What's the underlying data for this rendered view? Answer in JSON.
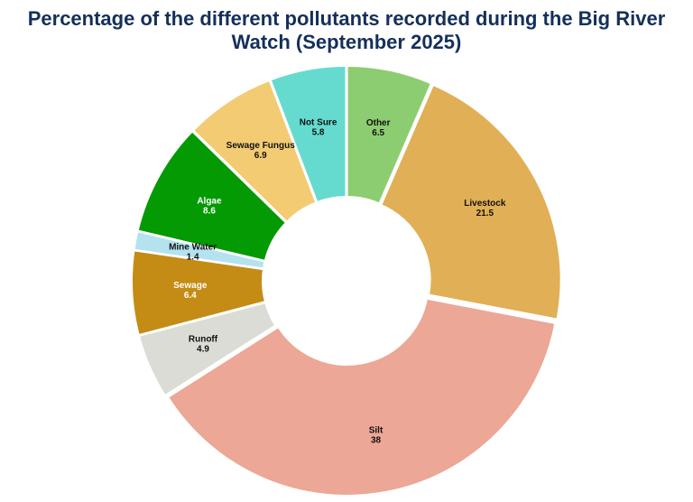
{
  "chart_data": {
    "type": "pie",
    "variant": "donut",
    "title_line1": "Percentage of the different pollutants recorded during the Big River",
    "title_line2": "Watch (September 2025)",
    "start_category": "Other",
    "direction": "clockwise",
    "slices": [
      {
        "label": "Other",
        "value": 6.5,
        "color": "#8dcd71",
        "text_color": "#111111"
      },
      {
        "label": "Livestock",
        "value": 21.5,
        "color": "#e1af55",
        "text_color": "#111111"
      },
      {
        "label": "Silt",
        "value": 38,
        "color": "#eca796",
        "text_color": "#111111"
      },
      {
        "label": "Runoff",
        "value": 4.9,
        "color": "#dcdcd6",
        "text_color": "#111111"
      },
      {
        "label": "Sewage",
        "value": 6.4,
        "color": "#c48c14",
        "text_color": "#ffffff"
      },
      {
        "label": "Mine Water",
        "value": 1.4,
        "color": "#b4e2ef",
        "text_color": "#111111"
      },
      {
        "label": "Algae",
        "value": 8.6,
        "color": "#039a03",
        "text_color": "#ffffff"
      },
      {
        "label": "Sewage Fungus",
        "value": 6.9,
        "color": "#f2cb73",
        "text_color": "#111111"
      },
      {
        "label": "Not Sure",
        "value": 5.8,
        "color": "#65dbd0",
        "text_color": "#111111"
      }
    ]
  }
}
